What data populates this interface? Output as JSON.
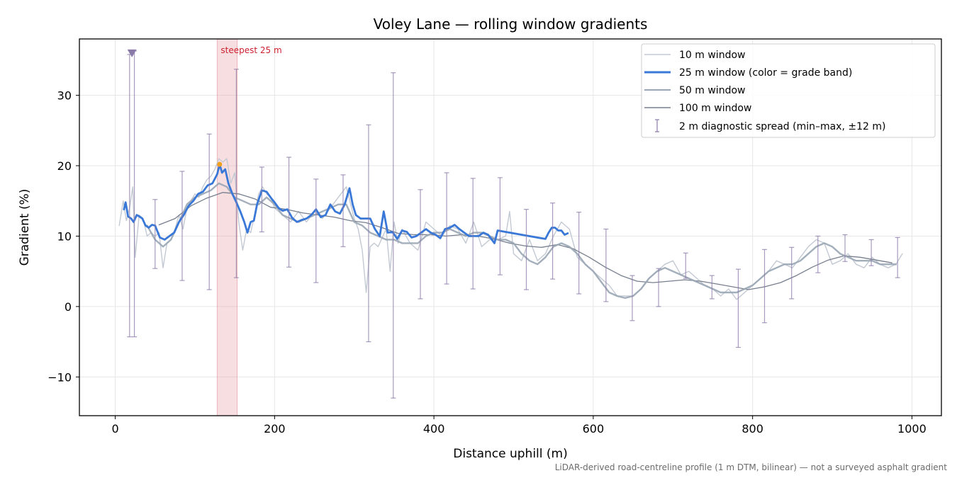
{
  "chart_data": {
    "type": "line",
    "title": "Voley Lane — rolling window gradients",
    "xlabel": "Distance uphill (m)",
    "ylabel": "Gradient (%)",
    "xlim": [
      -45,
      1037
    ],
    "ylim": [
      -15.5,
      38
    ],
    "xticks": [
      0,
      200,
      400,
      600,
      800,
      1000
    ],
    "yticks": [
      -10,
      0,
      10,
      20,
      30
    ],
    "xtick_labels": [
      "0",
      "200",
      "400",
      "600",
      "800",
      "1000"
    ],
    "ytick_labels": [
      "−10",
      "0",
      "10",
      "20",
      "30"
    ],
    "grid": true,
    "legend_position": "top-right",
    "footnote": "LiDAR-derived road-centreline profile (1 m DTM, bilinear) — not a surveyed asphalt gradient",
    "highlight": {
      "label": "steepest 25 m",
      "x_start": 128,
      "x_end": 153,
      "color": "#e8a3aa"
    },
    "peak_marker": {
      "x": 131,
      "y": 20.2,
      "color": "#f0a020"
    },
    "clip_marker": {
      "x": 21,
      "y": 36,
      "color": "#8a7aa8"
    },
    "series": [
      {
        "name": "10 m window",
        "color": "#c3c9d3",
        "x": [
          5,
          10,
          14,
          18,
          22,
          25,
          30,
          35,
          40,
          45,
          50,
          55,
          60,
          65,
          70,
          75,
          80,
          85,
          90,
          95,
          100,
          105,
          110,
          115,
          120,
          125,
          130,
          135,
          140,
          145,
          150,
          155,
          160,
          165,
          170,
          175,
          180,
          185,
          190,
          195,
          200,
          210,
          220,
          230,
          240,
          250,
          260,
          270,
          280,
          290,
          300,
          305,
          310,
          315,
          320,
          325,
          330,
          340,
          345,
          350,
          355,
          360,
          370,
          380,
          390,
          400,
          410,
          420,
          430,
          440,
          450,
          460,
          470,
          480,
          490,
          495,
          500,
          510,
          520,
          530,
          540,
          550,
          560,
          570,
          580,
          590,
          600,
          610,
          620,
          630,
          640,
          650,
          660,
          670,
          680,
          690,
          700,
          710,
          720,
          730,
          740,
          750,
          760,
          770,
          780,
          790,
          800,
          810,
          820,
          830,
          840,
          850,
          860,
          870,
          880,
          890,
          900,
          910,
          920,
          930,
          940,
          950,
          960,
          970,
          980,
          988
        ],
        "y": [
          11.5,
          15.0,
          12.2,
          14.0,
          17.0,
          7.0,
          13.0,
          12.5,
          10.0,
          10.5,
          10.0,
          10.5,
          5.5,
          9.0,
          9.5,
          11.0,
          13.0,
          11.0,
          14.0,
          15.0,
          16.0,
          15.5,
          17.0,
          18.0,
          18.5,
          19.5,
          21.0,
          20.5,
          21.0,
          17.5,
          19.0,
          12.0,
          8.0,
          11.0,
          10.5,
          13.0,
          16.0,
          17.0,
          16.0,
          15.5,
          14.0,
          13.0,
          12.0,
          13.5,
          12.0,
          13.5,
          12.5,
          14.0,
          15.5,
          17.0,
          12.5,
          11.0,
          8.0,
          2.0,
          8.5,
          9.0,
          8.5,
          11.0,
          5.0,
          12.0,
          9.0,
          11.0,
          9.0,
          8.0,
          12.0,
          11.0,
          10.0,
          11.5,
          11.0,
          9.0,
          12.0,
          8.5,
          9.5,
          9.5,
          10.0,
          13.5,
          7.5,
          6.5,
          9.5,
          6.5,
          7.5,
          10.0,
          12.0,
          11.0,
          7.0,
          6.0,
          5.0,
          4.0,
          3.0,
          1.5,
          1.5,
          1.5,
          2.5,
          4.0,
          5.0,
          6.0,
          6.5,
          4.5,
          5.0,
          4.0,
          3.0,
          2.5,
          1.5,
          2.5,
          1.0,
          2.0,
          3.0,
          4.0,
          5.0,
          6.5,
          6.0,
          5.5,
          7.0,
          8.5,
          9.5,
          9.0,
          6.0,
          6.5,
          7.5,
          6.0,
          5.5,
          7.0,
          6.0,
          5.5,
          6.0,
          7.5
        ]
      },
      {
        "name": "25 m window (color = grade band)",
        "color": "#3a78d8",
        "x": [
          11,
          13,
          16,
          20,
          23,
          27,
          30,
          34,
          38,
          42,
          46,
          50,
          56,
          62,
          68,
          74,
          80,
          86,
          92,
          98,
          104,
          110,
          116,
          122,
          128,
          131,
          134,
          138,
          142,
          147,
          152,
          157,
          162,
          166,
          170,
          174,
          178,
          184,
          190,
          195,
          200,
          205,
          210,
          216,
          222,
          228,
          234,
          240,
          246,
          252,
          258,
          264,
          270,
          276,
          282,
          288,
          294,
          298,
          302,
          308,
          314,
          320,
          326,
          332,
          337,
          342,
          348,
          354,
          360,
          366,
          372,
          378,
          384,
          390,
          396,
          402,
          408,
          414,
          420,
          426,
          432,
          438,
          444,
          450,
          456,
          462,
          468,
          472,
          476,
          480,
          540,
          544,
          548,
          552,
          556,
          560,
          564,
          568
        ],
        "y": [
          13.8,
          14.8,
          12.8,
          12.5,
          12.0,
          13.0,
          12.8,
          12.5,
          11.5,
          11.2,
          11.6,
          11.5,
          9.8,
          9.5,
          10.0,
          10.5,
          12.0,
          13.0,
          14.3,
          15.0,
          16.0,
          16.3,
          17.2,
          17.5,
          18.8,
          20.2,
          19.0,
          19.5,
          17.5,
          16.0,
          14.8,
          13.5,
          12.0,
          10.5,
          12.0,
          12.2,
          14.5,
          16.5,
          16.3,
          15.5,
          14.8,
          14.0,
          13.6,
          13.8,
          12.6,
          12.0,
          12.3,
          12.5,
          13.0,
          13.8,
          12.7,
          13.0,
          14.5,
          13.5,
          13.2,
          14.5,
          16.8,
          14.5,
          13.0,
          12.5,
          12.5,
          12.5,
          11.0,
          10.0,
          13.5,
          10.5,
          10.6,
          9.6,
          10.8,
          10.6,
          9.8,
          10.0,
          10.5,
          11.0,
          10.5,
          10.2,
          9.7,
          11.0,
          11.2,
          11.6,
          11.0,
          10.5,
          10.0,
          10.0,
          10.0,
          10.5,
          10.2,
          9.6,
          9.0,
          10.8,
          9.6,
          10.5,
          11.2,
          11.2,
          10.8,
          10.8,
          10.2,
          10.4
        ]
      },
      {
        "name": "50 m window",
        "color": "#9aa6b5",
        "x": [
          40,
          50,
          60,
          70,
          80,
          90,
          100,
          110,
          120,
          130,
          140,
          150,
          160,
          170,
          180,
          190,
          200,
          210,
          220,
          230,
          240,
          250,
          260,
          270,
          280,
          290,
          300,
          310,
          320,
          330,
          340,
          350,
          360,
          370,
          380,
          390,
          400,
          410,
          420,
          430,
          440,
          450,
          460,
          470,
          480,
          490,
          500,
          510,
          520,
          530,
          540,
          550,
          560,
          570,
          580,
          590,
          600,
          610,
          620,
          630,
          640,
          650,
          660,
          670,
          680,
          690,
          700,
          710,
          720,
          730,
          740,
          750,
          760,
          770,
          780,
          790,
          800,
          810,
          820,
          830,
          840,
          850,
          860,
          870,
          880,
          890,
          900,
          910,
          920,
          930,
          940,
          950,
          960,
          970,
          980
        ],
        "y": [
          11.5,
          9.5,
          8.5,
          9.5,
          12.0,
          14.5,
          15.5,
          16.0,
          16.5,
          17.5,
          17.0,
          15.5,
          15.0,
          14.5,
          14.5,
          15.5,
          14.5,
          13.0,
          12.5,
          12.0,
          12.5,
          13.0,
          13.5,
          14.0,
          14.5,
          14.5,
          12.0,
          11.5,
          10.5,
          10.0,
          9.5,
          9.5,
          9.0,
          9.0,
          9.0,
          10.0,
          10.5,
          10.5,
          11.0,
          10.5,
          10.0,
          10.5,
          10.5,
          10.0,
          9.5,
          9.5,
          9.0,
          7.5,
          6.5,
          6.0,
          7.0,
          8.5,
          9.0,
          8.5,
          7.5,
          6.0,
          5.0,
          3.5,
          2.0,
          1.5,
          1.2,
          1.5,
          2.5,
          4.0,
          5.0,
          5.5,
          5.0,
          4.5,
          4.0,
          3.5,
          3.0,
          2.5,
          2.0,
          2.0,
          2.0,
          2.5,
          3.0,
          4.0,
          5.0,
          5.5,
          6.0,
          6.0,
          6.5,
          7.5,
          8.5,
          9.0,
          8.5,
          7.5,
          7.0,
          6.5,
          6.5,
          6.5,
          6.0,
          6.0,
          6.0
        ]
      },
      {
        "name": "100 m window",
        "color": "#777f8e",
        "x": [
          55,
          75,
          95,
          115,
          135,
          155,
          175,
          195,
          215,
          235,
          255,
          275,
          295,
          315,
          335,
          355,
          375,
          395,
          415,
          435,
          455,
          475,
          495,
          515,
          535,
          555,
          575,
          595,
          615,
          635,
          655,
          675,
          695,
          715,
          735,
          755,
          775,
          795,
          815,
          835,
          855,
          875,
          895,
          915,
          935,
          955,
          975
        ],
        "y": [
          11.6,
          12.5,
          14.3,
          15.4,
          16.2,
          16.0,
          15.3,
          14.1,
          13.8,
          13.3,
          13.0,
          12.7,
          12.2,
          11.9,
          11.2,
          10.4,
          10.2,
          10.2,
          10.0,
          10.2,
          10.0,
          9.6,
          9.0,
          8.6,
          8.4,
          8.8,
          8.2,
          7.0,
          5.6,
          4.4,
          3.6,
          3.4,
          3.6,
          3.8,
          3.6,
          3.2,
          2.8,
          2.4,
          2.8,
          3.4,
          4.4,
          5.6,
          6.6,
          7.2,
          7.0,
          6.6,
          6.2
        ]
      },
      {
        "name": "2 m diagnostic spread (min–max, ±12 m)",
        "color": "#8a7aa8",
        "x": [
          18,
          24,
          50,
          84,
          118,
          152,
          184,
          218,
          252,
          286,
          318,
          349,
          383,
          416,
          449,
          483,
          516,
          549,
          582,
          616,
          649,
          682,
          716,
          749,
          782,
          815,
          849,
          882,
          916,
          949,
          982
        ],
        "min": [
          -4.3,
          -4.3,
          5.4,
          3.7,
          2.4,
          4.1,
          10.6,
          5.6,
          3.4,
          8.5,
          -5.0,
          -13.0,
          1.1,
          3.2,
          2.5,
          4.5,
          2.4,
          3.9,
          1.8,
          0.7,
          -2.0,
          0.0,
          4.0,
          1.1,
          -5.8,
          -2.3,
          1.1,
          4.8,
          6.4,
          5.8,
          4.1
        ],
        "max": [
          35.8,
          36.3,
          15.2,
          19.2,
          24.5,
          33.7,
          19.8,
          21.2,
          18.1,
          18.7,
          25.8,
          33.2,
          16.6,
          19.0,
          18.2,
          18.3,
          13.8,
          14.7,
          13.4,
          11.0,
          4.4,
          5.4,
          7.6,
          4.4,
          5.3,
          8.1,
          8.4,
          10.0,
          10.2,
          9.5,
          9.8
        ]
      }
    ]
  }
}
